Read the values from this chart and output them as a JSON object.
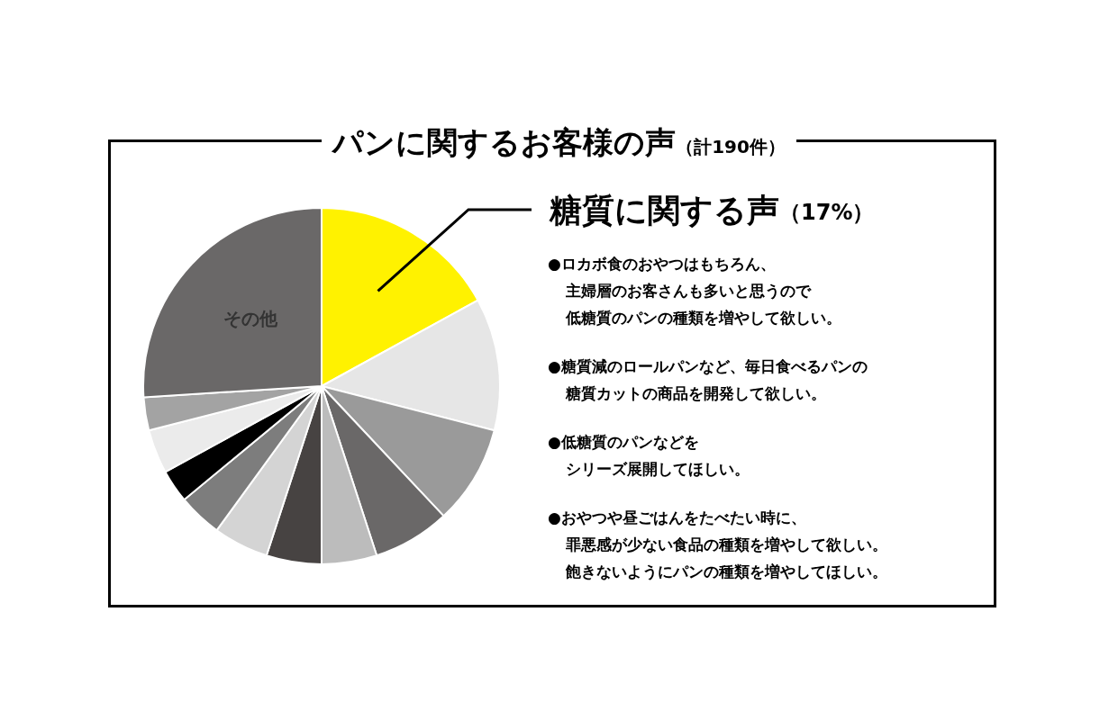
{
  "chart_data": {
    "type": "pie",
    "title": "パンに関するお客様の声",
    "subtitle": "（計190件）",
    "categories": [
      "糖質に関する声",
      null,
      null,
      null,
      null,
      null,
      null,
      null,
      null,
      null,
      null,
      "その他"
    ],
    "values": [
      17,
      12,
      9,
      7,
      5,
      5,
      5,
      4,
      3,
      4,
      3,
      26
    ],
    "value_labels": [
      "（17%）",
      null,
      null,
      null,
      null,
      null,
      null,
      null,
      null,
      null,
      null,
      null
    ],
    "colors": [
      "#fff200",
      "#e6e6e6",
      "#9a9a9a",
      "#6a6868",
      "#bcbcbc",
      "#474342",
      "#d4d4d4",
      "#7d7d7d",
      "#000000",
      "#ebebeb",
      "#a3a3a3",
      "#6a6868"
    ],
    "annotations": [
      "●ロカボ食のおやつはもちろん、",
      "主婦層のお客さんも多いと思うので",
      "低糖質のパンの種類を増やして欲しい。",
      "●糖質減のロールパンなど、毎日食べるパンの",
      "糖質カットの商品を開発して欲しい。",
      "●低糖質のパンなどを",
      "シリーズ展開してほしい。",
      "●おやつや昼ごはんをたべたい時に、",
      "罪悪感が少ない食品の種類を増やして欲しい。",
      "飽きないようにパンの種類を増やしてほしい。"
    ]
  }
}
